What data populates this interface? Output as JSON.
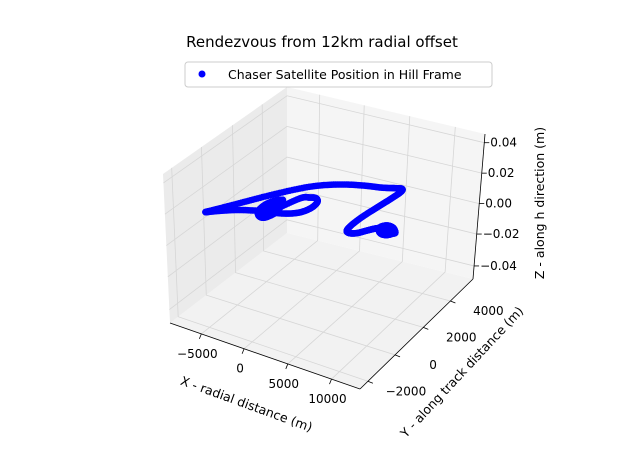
{
  "chart_data": {
    "type": "scatter",
    "title": "Rendezvous from 12km radial offset",
    "xlabel": "X - radial distance (m)",
    "ylabel": "Y - along track distance (m)",
    "zlabel": "Z - along h direction (m)",
    "xticks": [
      "−5000",
      "0",
      "5000",
      "10000"
    ],
    "yticks": [
      "−2000",
      "0",
      "2000",
      "4000"
    ],
    "zticks": [
      "−0.04",
      "−0.02",
      "0.00",
      "0.02",
      "0.04"
    ],
    "legend": {
      "label": "Chaser Satellite Position in Hill Frame",
      "placement": "top-center"
    },
    "grid": true,
    "marker_color": "#0000ff",
    "series": [
      {
        "name": "Chaser Satellite Position in Hill Frame",
        "points": [
          [
            -400,
            900,
            0
          ],
          [
            -900,
            700,
            0
          ],
          [
            -1300,
            150,
            0
          ],
          [
            -1200,
            -450,
            0
          ],
          [
            -600,
            -800,
            0
          ],
          [
            0,
            -750,
            0
          ],
          [
            350,
            -200,
            0
          ],
          [
            100,
            350,
            0
          ],
          [
            -500,
            650,
            0
          ],
          [
            -1000,
            250,
            0
          ],
          [
            -900,
            -350,
            0
          ],
          [
            -300,
            -550,
            0
          ],
          [
            200,
            -250,
            0
          ],
          [
            100,
            200,
            0
          ],
          [
            -350,
            300,
            0
          ],
          [
            -600,
            0,
            0
          ],
          [
            -400,
            -250,
            0
          ],
          [
            -100,
            -100,
            0
          ],
          [
            800,
            1400,
            0
          ],
          [
            1500,
            1700,
            0
          ],
          [
            2100,
            1800,
            0
          ],
          [
            2600,
            1550,
            0
          ],
          [
            2700,
            1000,
            0
          ],
          [
            2200,
            400,
            0
          ],
          [
            1000,
            -50,
            0
          ],
          [
            -1000,
            -400,
            0
          ],
          [
            -3000,
            -900,
            0
          ],
          [
            -4600,
            -1500,
            0
          ],
          [
            -5300,
            -1800,
            0
          ],
          [
            -4800,
            -1400,
            0
          ],
          [
            -3300,
            -200,
            0
          ],
          [
            -1500,
            1200,
            0
          ],
          [
            500,
            2500,
            0
          ],
          [
            2500,
            3300,
            0
          ],
          [
            4500,
            3800,
            0
          ],
          [
            6200,
            4100,
            0
          ],
          [
            7400,
            4400,
            0
          ],
          [
            8000,
            4500,
            0
          ],
          [
            8200,
            4200,
            0
          ],
          [
            8100,
            3500,
            0
          ],
          [
            7900,
            2600,
            0
          ],
          [
            7700,
            1600,
            0
          ],
          [
            7700,
            800,
            0
          ],
          [
            7900,
            300,
            0
          ],
          [
            8400,
            200,
            0
          ],
          [
            9000,
            400,
            0
          ],
          [
            9500,
            800,
            0
          ],
          [
            9900,
            1100,
            0
          ],
          [
            10300,
            1300,
            0
          ],
          [
            10700,
            1400,
            0
          ],
          [
            11000,
            1400,
            0
          ],
          [
            11400,
            1300,
            0
          ],
          [
            11700,
            1200,
            0
          ],
          [
            12000,
            1300,
            0
          ],
          [
            11500,
            1550,
            0
          ],
          [
            11000,
            1650,
            0
          ],
          [
            10500,
            1600,
            0
          ],
          [
            10200,
            1350,
            0
          ],
          [
            10500,
            1050,
            0
          ],
          [
            11000,
            900,
            0
          ],
          [
            11500,
            950,
            0
          ],
          [
            11800,
            1150,
            0
          ],
          [
            11600,
            1400,
            0
          ],
          [
            11100,
            1500,
            0
          ],
          [
            10700,
            1400,
            0
          ],
          [
            10600,
            1150,
            0
          ],
          [
            11000,
            1050,
            0
          ],
          [
            11400,
            1100,
            0
          ],
          [
            11600,
            1250,
            0
          ],
          [
            11300,
            1350,
            0
          ]
        ]
      }
    ]
  }
}
